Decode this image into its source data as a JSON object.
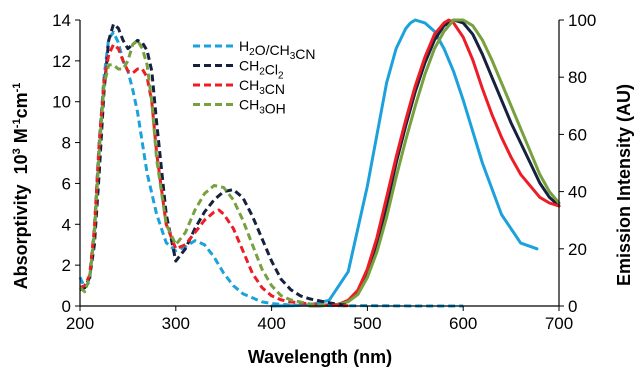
{
  "chart_data": {
    "type": "line",
    "x_axis": {
      "label": "Wavelength (nm)",
      "range": [
        200,
        700
      ],
      "ticks": [
        "200",
        "300",
        "400",
        "500",
        "600",
        "700"
      ]
    },
    "y_left_axis": {
      "label_main": "Absorptivity",
      "label_unit_base": "10",
      "label_unit_exp": "3",
      "label_unit_mid": " M",
      "label_unit_m_exp": "-1",
      "label_unit_cm": "cm",
      "label_unit_cm_exp": "-1",
      "range": [
        0,
        14
      ],
      "ticks": [
        "0",
        "2",
        "4",
        "6",
        "8",
        "10",
        "12",
        "14"
      ]
    },
    "y_right_axis": {
      "label": "Emission Intensity (AU)",
      "range": [
        0,
        100
      ],
      "ticks": [
        "0",
        "20",
        "40",
        "60",
        "80",
        "100"
      ]
    },
    "legend": {
      "placement": "top-center",
      "entries": [
        {
          "parts": [
            {
              "t": "H"
            },
            {
              "t": "2",
              "sub": true
            },
            {
              "t": "O/CH"
            },
            {
              "t": "3",
              "sub": true
            },
            {
              "t": "CN"
            }
          ],
          "color": "#1ba1dc"
        },
        {
          "parts": [
            {
              "t": "CH"
            },
            {
              "t": "2",
              "sub": true
            },
            {
              "t": "Cl"
            },
            {
              "t": "2",
              "sub": true
            }
          ],
          "color": "#16213e"
        },
        {
          "parts": [
            {
              "t": "CH"
            },
            {
              "t": "3",
              "sub": true
            },
            {
              "t": "CN"
            }
          ],
          "color": "#ee1c25"
        },
        {
          "parts": [
            {
              "t": "CH"
            },
            {
              "t": "3",
              "sub": true
            },
            {
              "t": "OH"
            }
          ],
          "color": "#77a03e"
        }
      ]
    },
    "absorption_series": [
      {
        "name": "H2O/CH3CN",
        "color": "#1ba1dc",
        "style": "dashed",
        "x": [
          200,
          205,
          210,
          215,
          220,
          225,
          230,
          235,
          240,
          245,
          250,
          255,
          260,
          270,
          280,
          290,
          300,
          310,
          320,
          330,
          340,
          350,
          360,
          370,
          380,
          390,
          400,
          410,
          420,
          440,
          460,
          480,
          500,
          550,
          600
        ],
        "y": [
          1.4,
          0.9,
          1.2,
          3.8,
          8.0,
          11.2,
          13.1,
          13.4,
          12.9,
          12.0,
          11.5,
          10.6,
          9.5,
          6.5,
          4.5,
          3.1,
          2.7,
          2.9,
          3.2,
          3.0,
          2.4,
          1.6,
          1.0,
          0.6,
          0.4,
          0.2,
          0.12,
          0.08,
          0.05,
          0.03,
          0.02,
          0.01,
          0.02,
          0.0,
          0.0
        ]
      },
      {
        "name": "CH2Cl2",
        "color": "#16213e",
        "style": "dashed",
        "x": [
          200,
          205,
          210,
          215,
          220,
          225,
          230,
          235,
          240,
          245,
          250,
          255,
          260,
          265,
          270,
          275,
          280,
          290,
          300,
          310,
          320,
          330,
          340,
          350,
          360,
          370,
          380,
          390,
          400,
          410,
          420,
          430,
          440,
          450,
          460,
          470,
          480
        ],
        "y": [
          0.8,
          0.9,
          1.4,
          3.0,
          6.5,
          10.5,
          13.0,
          13.8,
          13.6,
          13.0,
          12.6,
          12.8,
          13.0,
          12.9,
          12.5,
          11.5,
          9.0,
          4.5,
          2.2,
          2.8,
          3.8,
          4.6,
          5.2,
          5.6,
          5.7,
          5.3,
          4.4,
          3.3,
          2.2,
          1.3,
          0.8,
          0.5,
          0.35,
          0.25,
          0.15,
          0.08,
          0.04
        ]
      },
      {
        "name": "CH3CN",
        "color": "#ee1c25",
        "style": "dashed",
        "x": [
          200,
          205,
          210,
          215,
          220,
          225,
          230,
          235,
          240,
          245,
          250,
          255,
          260,
          265,
          270,
          275,
          280,
          290,
          300,
          310,
          320,
          330,
          340,
          345,
          350,
          360,
          370,
          380,
          390,
          400,
          410,
          420,
          440,
          460,
          480
        ],
        "y": [
          0.9,
          1.0,
          1.5,
          3.8,
          8.0,
          11.0,
          12.3,
          12.8,
          12.6,
          12.0,
          11.5,
          11.4,
          11.6,
          11.6,
          11.2,
          10.0,
          7.5,
          4.0,
          2.8,
          3.0,
          3.6,
          4.2,
          4.6,
          4.7,
          4.5,
          3.8,
          2.7,
          1.6,
          0.9,
          0.5,
          0.3,
          0.2,
          0.1,
          0.04,
          0.01
        ]
      },
      {
        "name": "CH3OH",
        "color": "#77a03e",
        "style": "dashed",
        "x": [
          200,
          205,
          210,
          215,
          220,
          225,
          230,
          235,
          240,
          245,
          250,
          255,
          260,
          265,
          270,
          275,
          280,
          290,
          300,
          310,
          320,
          330,
          340,
          350,
          360,
          370,
          380,
          390,
          400,
          410,
          420,
          440,
          460
        ],
        "y": [
          0.9,
          0.7,
          1.4,
          3.5,
          7.5,
          10.8,
          11.8,
          11.8,
          11.6,
          11.6,
          12.0,
          12.8,
          13.0,
          12.6,
          11.8,
          10.0,
          7.2,
          4.0,
          3.0,
          3.6,
          4.7,
          5.5,
          5.9,
          5.8,
          5.2,
          4.2,
          3.0,
          1.8,
          1.0,
          0.5,
          0.3,
          0.1,
          0.02
        ]
      }
    ],
    "emission_series": [
      {
        "name": "H2O/CH3CN",
        "color": "#1ba1dc",
        "style": "solid",
        "x": [
          400,
          420,
          440,
          460,
          480,
          500,
          510,
          520,
          530,
          540,
          545,
          550,
          560,
          570,
          580,
          590,
          600,
          620,
          640,
          660,
          677
        ],
        "y": [
          0.0,
          0.1,
          0.4,
          2.0,
          12.0,
          42.0,
          60.0,
          78.0,
          90.0,
          97.0,
          99.0,
          100.0,
          99.0,
          96.0,
          90.0,
          82.0,
          72.0,
          50.0,
          32.0,
          22.0,
          20.0
        ]
      },
      {
        "name": "CH2Cl2",
        "color": "#16213e",
        "style": "solid",
        "x": [
          440,
          460,
          470,
          480,
          490,
          500,
          510,
          520,
          530,
          540,
          550,
          560,
          570,
          580,
          590,
          600,
          610,
          620,
          630,
          640,
          650,
          660,
          670,
          680,
          690,
          700
        ],
        "y": [
          0.0,
          0.2,
          0.6,
          1.8,
          5.0,
          12.0,
          22.0,
          35.0,
          50.0,
          63.0,
          75.0,
          85.0,
          93.0,
          98.0,
          100.0,
          99.0,
          95.0,
          88.0,
          80.0,
          72.0,
          64.0,
          57.0,
          50.0,
          43.0,
          38.0,
          35.0
        ]
      },
      {
        "name": "CH3CN",
        "color": "#ee1c25",
        "style": "solid",
        "x": [
          440,
          460,
          470,
          480,
          490,
          500,
          510,
          520,
          530,
          540,
          550,
          560,
          570,
          580,
          585,
          590,
          600,
          610,
          620,
          630,
          640,
          650,
          660,
          670,
          680,
          690,
          700
        ],
        "y": [
          0.0,
          0.2,
          0.6,
          2.0,
          5.5,
          13.0,
          24.0,
          38.0,
          52.0,
          65.0,
          77.0,
          87.0,
          95.0,
          99.0,
          100.0,
          99.0,
          94.0,
          86.0,
          76.0,
          67.0,
          59.0,
          52.0,
          46.0,
          42.0,
          38.0,
          36.0,
          35.0
        ]
      },
      {
        "name": "CH3OH",
        "color": "#77a03e",
        "style": "solid",
        "x": [
          440,
          460,
          470,
          480,
          490,
          500,
          510,
          520,
          530,
          540,
          550,
          560,
          570,
          580,
          590,
          600,
          610,
          620,
          630,
          640,
          650,
          660,
          670,
          680,
          690,
          700
        ],
        "y": [
          0.0,
          0.2,
          0.5,
          1.5,
          4.0,
          10.0,
          19.0,
          31.0,
          45.0,
          58.0,
          70.0,
          81.0,
          90.0,
          96.0,
          100.0,
          100.0,
          98.0,
          93.0,
          86.0,
          78.0,
          70.0,
          62.0,
          54.0,
          46.0,
          40.0,
          36.0
        ]
      }
    ]
  }
}
